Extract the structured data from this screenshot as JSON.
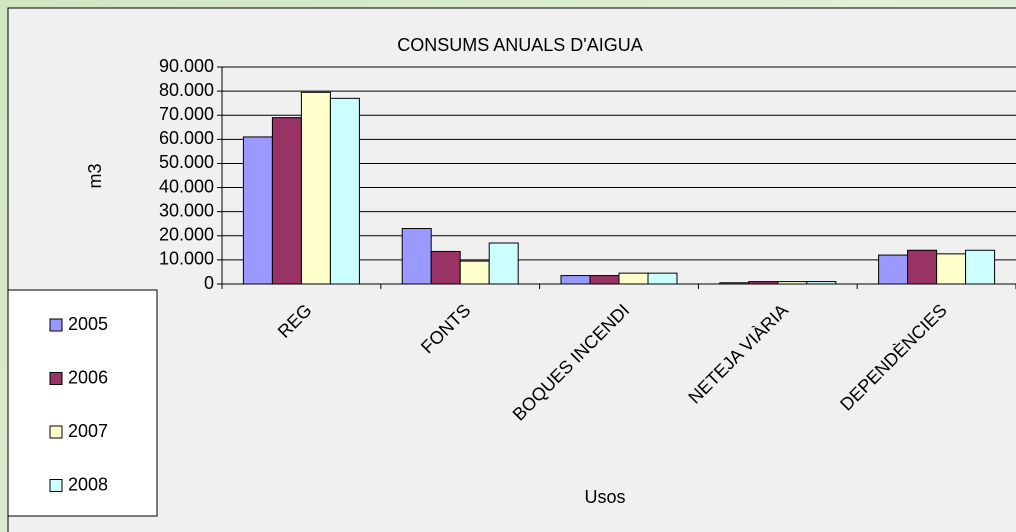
{
  "chart_data": {
    "type": "bar",
    "title": "CONSUMS ANUALS D'AIGUA",
    "x_label": "Usos",
    "y_label": "m3",
    "categories": [
      "REG",
      "FONTS",
      "BOQUES INCENDI",
      "NETEJA VIÀRIA",
      "DEPENDÈNCIES"
    ],
    "series": [
      {
        "name": "2005",
        "color": "#9999ff",
        "values": [
          61000,
          23000,
          3500,
          500,
          12000
        ]
      },
      {
        "name": "2006",
        "color": "#993366",
        "values": [
          69000,
          13500,
          3500,
          1000,
          14000
        ]
      },
      {
        "name": "2007",
        "color": "#ffffcc",
        "values": [
          79500,
          9500,
          4500,
          1000,
          12500
        ]
      },
      {
        "name": "2008",
        "color": "#ccffff",
        "values": [
          77000,
          17000,
          4500,
          1000,
          14000
        ]
      }
    ],
    "ylim": [
      0,
      90000
    ],
    "yticks": [
      0,
      {
        "value": 10000,
        "label": "10.000"
      },
      {
        "value": 20000,
        "label": "20.000"
      },
      {
        "value": 30000,
        "label": "30.000"
      },
      {
        "value": 40000,
        "label": "40.000"
      },
      {
        "value": 50000,
        "label": "50.000"
      },
      {
        "value": 60000,
        "label": "60.000"
      },
      {
        "value": 70000,
        "label": "70.000"
      },
      {
        "value": 80000,
        "label": "80.000"
      },
      {
        "value": 90000,
        "label": "90.000"
      }
    ],
    "grid": true,
    "legend": "left"
  }
}
